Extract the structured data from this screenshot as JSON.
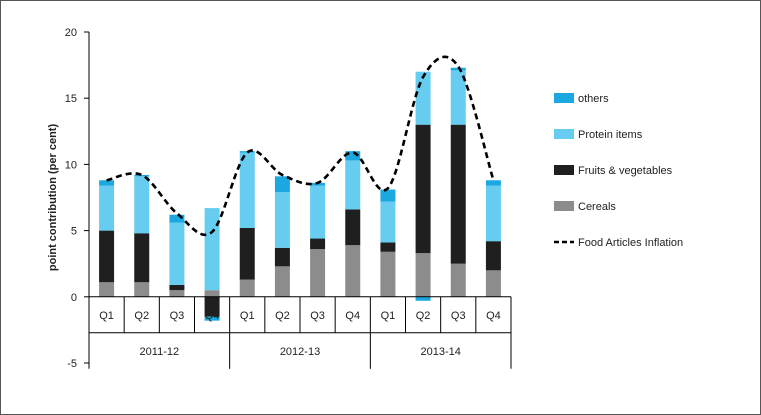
{
  "chart_data": {
    "type": "bar",
    "stacked": true,
    "ylabel": "point contribution (per cent)",
    "xlabel": "",
    "ylim": [
      -5,
      20
    ],
    "yticks": [
      -5,
      0,
      5,
      10,
      15,
      20
    ],
    "ytick_labels": [
      "-5",
      "0",
      "5",
      "10",
      "15",
      "20"
    ],
    "grid": false,
    "legend_position": "right",
    "categories": [
      "Q1",
      "Q2",
      "Q3",
      "Q4",
      "Q1",
      "Q2",
      "Q3",
      "Q4",
      "Q1",
      "Q2",
      "Q3",
      "Q4"
    ],
    "groups": [
      {
        "label": "2011-12",
        "count": 4
      },
      {
        "label": "2012-13",
        "count": 4
      },
      {
        "label": "2013-14",
        "count": 4
      }
    ],
    "series": [
      {
        "name": "Cereals",
        "color": "#8c8c8c",
        "values": [
          1.1,
          1.1,
          0.5,
          0.5,
          1.3,
          2.3,
          3.6,
          3.9,
          3.4,
          3.3,
          2.5,
          2.0
        ]
      },
      {
        "name": "Fruits & vegetables",
        "color": "#1f1f1f",
        "values": [
          3.9,
          3.7,
          0.4,
          -1.5,
          3.9,
          1.4,
          0.8,
          2.7,
          0.7,
          9.7,
          10.5,
          2.2
        ]
      },
      {
        "name": "Protein items",
        "color": "#66ccf0",
        "values": [
          3.4,
          4.3,
          4.7,
          6.2,
          5.7,
          4.2,
          4.0,
          3.7,
          3.1,
          4.0,
          4.1,
          4.2
        ]
      },
      {
        "name": "others",
        "color": "#1ba8e0",
        "values": [
          0.4,
          0.1,
          0.6,
          -0.3,
          0.1,
          1.2,
          0.2,
          0.7,
          0.9,
          -0.3,
          0.2,
          0.4
        ]
      }
    ],
    "line": {
      "name": "Food Articles Inflation",
      "color": "#000000",
      "style": "dashed",
      "values": [
        8.8,
        9.2,
        6.3,
        4.9,
        10.9,
        9.2,
        8.6,
        10.9,
        8.2,
        16.6,
        17.4,
        8.8
      ]
    },
    "legend_order": [
      "others",
      "Protein items",
      "Fruits & vegetables",
      "Cereals",
      "Food Articles Inflation"
    ]
  }
}
